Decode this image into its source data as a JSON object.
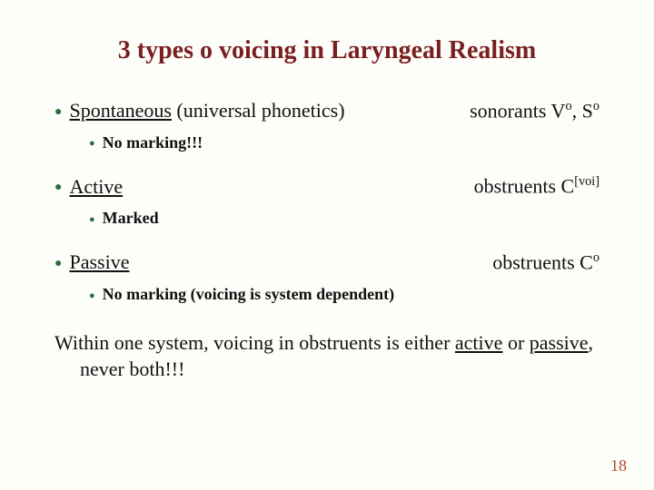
{
  "title": "3 types o voicing in Laryngeal Realism",
  "items": [
    {
      "label": "Spontaneous",
      "afterLabel": " (universal phonetics)",
      "right_pre": "sonorants V",
      "right_sup": "o",
      "right_mid": ", S",
      "right_sup2": "o",
      "sub": "No marking!!!",
      "subBold": true
    },
    {
      "label": "Active",
      "afterLabel": "",
      "right_pre": "obstruents C",
      "right_sup": "[voi]",
      "right_mid": "",
      "right_sup2": "",
      "sub": "Marked",
      "subBold": true
    },
    {
      "label": "Passive",
      "afterLabel": "",
      "right_pre": "obstruents C",
      "right_sup": "o",
      "right_mid": "",
      "right_sup2": "",
      "sub": "No marking (voicing is system dependent)",
      "subBold": true
    }
  ],
  "summary": {
    "prefix": "Within one system, voicing in obstruents is either ",
    "u1": "active",
    "mid": " or ",
    "u2": "passive",
    "suffix": ", never both!!!"
  },
  "colors": {
    "title": "#7a1f1f",
    "bullet": "#2a6f3a",
    "pageNum": "#b54a2a",
    "background": "#fdfdfa"
  },
  "pageNumber": "18"
}
